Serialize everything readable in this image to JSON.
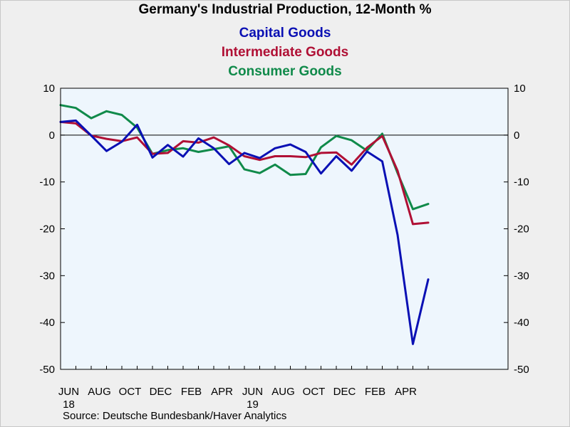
{
  "chart_data": {
    "type": "line",
    "title": "Germany's Industrial Production, 12-Month %",
    "source": "Source:  Deutsche Bundesbank/Haver Analytics",
    "ylim": [
      -50,
      10
    ],
    "yticks": [
      10,
      0,
      -10,
      -20,
      -30,
      -40,
      -50
    ],
    "y_axis_both_sides": true,
    "grid": false,
    "zero_line": true,
    "legend_placement": "top-center",
    "x": [
      "2018-05",
      "2018-06",
      "2018-07",
      "2018-08",
      "2018-09",
      "2018-10",
      "2018-11",
      "2018-12",
      "2019-01",
      "2019-02",
      "2019-03",
      "2019-04",
      "2019-05",
      "2019-06",
      "2019-07",
      "2019-08",
      "2019-09",
      "2019-10",
      "2019-11",
      "2019-12",
      "2020-01",
      "2020-02",
      "2020-03",
      "2020-04",
      "2020-05"
    ],
    "xtick_labels": [
      {
        "x": "2018-06",
        "label": "JUN",
        "year": "18"
      },
      {
        "x": "2018-08",
        "label": "AUG",
        "year": ""
      },
      {
        "x": "2018-10",
        "label": "OCT",
        "year": ""
      },
      {
        "x": "2018-12",
        "label": "DEC",
        "year": ""
      },
      {
        "x": "2019-02",
        "label": "FEB",
        "year": ""
      },
      {
        "x": "2019-04",
        "label": "APR",
        "year": ""
      },
      {
        "x": "2019-06",
        "label": "JUN",
        "year": "19"
      },
      {
        "x": "2019-08",
        "label": "AUG",
        "year": ""
      },
      {
        "x": "2019-10",
        "label": "OCT",
        "year": ""
      },
      {
        "x": "2019-12",
        "label": "DEC",
        "year": ""
      },
      {
        "x": "2020-02",
        "label": "FEB",
        "year": ""
      },
      {
        "x": "2020-04",
        "label": "APR",
        "year": ""
      }
    ],
    "series": [
      {
        "name": "Capital Goods",
        "color": "#0a10b4",
        "values": [
          2.8,
          3.1,
          -0.1,
          -3.4,
          -1.4,
          2.2,
          -4.8,
          -2.1,
          -4.6,
          -0.7,
          -2.8,
          -6.2,
          -3.8,
          -4.9,
          -2.8,
          -2.0,
          -3.6,
          -8.2,
          -4.5,
          -7.6,
          -3.5,
          -5.6,
          -21.3,
          -44.6,
          -30.8
        ]
      },
      {
        "name": "Intermediate Goods",
        "color": "#b01035",
        "values": [
          2.8,
          2.5,
          -0.1,
          -0.8,
          -1.3,
          -0.5,
          -4.0,
          -3.8,
          -1.3,
          -1.6,
          -0.5,
          -2.2,
          -4.5,
          -5.3,
          -4.5,
          -4.5,
          -4.7,
          -3.8,
          -3.7,
          -6.3,
          -2.7,
          -0.2,
          -7.6,
          -19.0,
          -18.7
        ]
      },
      {
        "name": "Consumer Goods",
        "color": "#108a4a",
        "values": [
          6.4,
          5.8,
          3.6,
          5.1,
          4.3,
          1.6,
          -4.0,
          -3.2,
          -2.8,
          -3.6,
          -3.0,
          -2.4,
          -7.3,
          -8.1,
          -6.3,
          -8.5,
          -8.3,
          -2.6,
          -0.2,
          -1.1,
          -3.3,
          0.3,
          -8.1,
          -15.8,
          -14.7
        ]
      }
    ]
  }
}
